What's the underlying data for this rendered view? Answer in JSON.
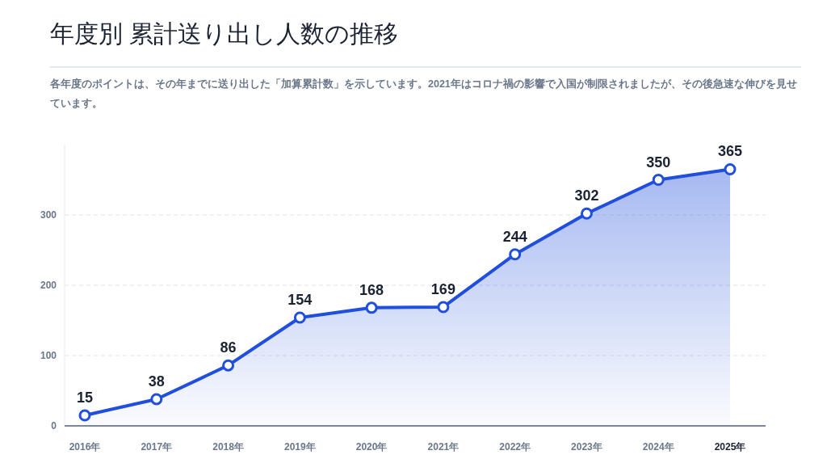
{
  "chart_data": {
    "type": "area",
    "title": "年度別 累計送り出し人数の推移",
    "subtitle": "各年度のポイントは、その年までに送り出した「加算累計数」を示しています。2021年はコロナ禍の影響で入国が制限されましたが、その後急速な伸びを見せています。",
    "categories": [
      "2016年",
      "2017年",
      "2018年",
      "2019年",
      "2020年",
      "2021年",
      "2022年",
      "2023年",
      "2024年",
      "2025年"
    ],
    "series": [
      {
        "color": "#1f4fdc",
        "values": [
          15,
          38,
          86,
          154,
          168,
          169,
          244,
          302,
          350,
          365
        ]
      }
    ],
    "ylim": [
      0,
      400
    ],
    "yticks": [
      0,
      100,
      200,
      300
    ],
    "grid": "y",
    "marker": "circle",
    "line_style": "solid",
    "data_labels": true
  }
}
